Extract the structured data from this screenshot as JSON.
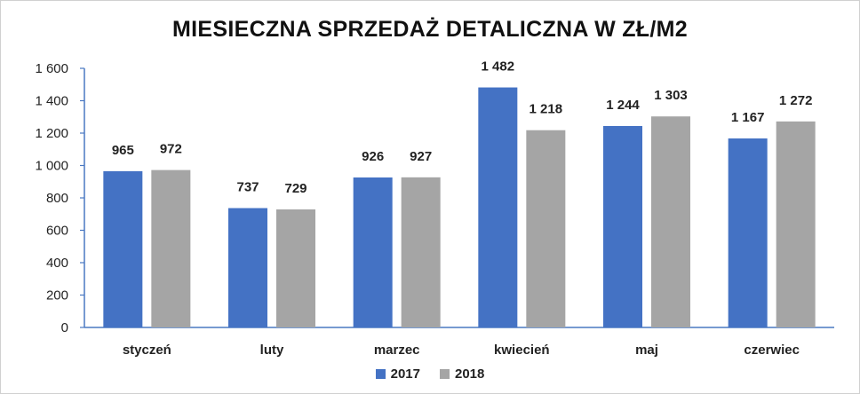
{
  "chart_data": {
    "type": "bar",
    "title": "MIESIECZNA SPRZEDAŻ DETALICZNA W ZŁ/M2",
    "categories": [
      "styczeń",
      "luty",
      "marzec",
      "kwiecień",
      "maj",
      "czerwiec"
    ],
    "series": [
      {
        "name": "2017",
        "color": "#4472C4",
        "values": [
          965,
          737,
          926,
          1482,
          1244,
          1167
        ],
        "labels": [
          "965",
          "737",
          "926",
          "1 482",
          "1 244",
          "1 167"
        ]
      },
      {
        "name": "2018",
        "color": "#A5A5A5",
        "values": [
          972,
          729,
          927,
          1218,
          1303,
          1272
        ],
        "labels": [
          "972",
          "729",
          "927",
          "1 218",
          "1 303",
          "1 272"
        ]
      }
    ],
    "ylim": [
      0,
      1600
    ],
    "yticks": [
      "0",
      "200",
      "400",
      "600",
      "800",
      "1 000",
      "1 200",
      "1 400",
      "1 600"
    ],
    "grid": false,
    "legend_position": "bottom"
  }
}
